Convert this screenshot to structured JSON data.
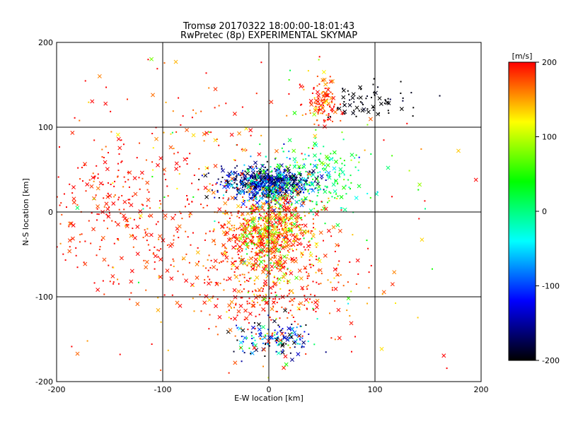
{
  "chart_data": {
    "type": "scatter",
    "title": "Tromsø 20170322 18:00:00-18:01:43",
    "subtitle": "RwPretec (8p) EXPERIMENTAL SKYMAP",
    "xlabel": "E-W location [km]",
    "ylabel": "N-S location [km]",
    "xlim": [
      -200,
      200
    ],
    "ylim": [
      -200,
      200
    ],
    "xticks": [
      "-200",
      "-100",
      "0",
      "100",
      "200"
    ],
    "yticks": [
      "-200",
      "-100",
      "0",
      "100",
      "200"
    ],
    "grid": true,
    "colorbar": {
      "label": "[m/s]",
      "min": -200,
      "max": 200,
      "ticks": [
        "200",
        "100",
        "0",
        "-100",
        "-200"
      ],
      "colormap": [
        "#000000",
        "#0000ff",
        "#00ffff",
        "#00ff00",
        "#ffff00",
        "#ff0000"
      ]
    },
    "markers": {
      "small": "dot",
      "large": "x"
    },
    "clusters": [
      {
        "x": 0,
        "y": 30,
        "sx": 20,
        "sy": 10,
        "n": 500,
        "vel": -120,
        "vsd": 60
      },
      {
        "x": 0,
        "y": 40,
        "sx": 25,
        "sy": 8,
        "n": 200,
        "vel": -170,
        "vsd": 30
      },
      {
        "x": 0,
        "y": -20,
        "sx": 22,
        "sy": 20,
        "n": 450,
        "vel": 180,
        "vsd": 30
      },
      {
        "x": 0,
        "y": -30,
        "sx": 15,
        "sy": 25,
        "n": 250,
        "vel": 100,
        "vsd": 60
      },
      {
        "x": 10,
        "y": -150,
        "sx": 20,
        "sy": 10,
        "n": 150,
        "vel": -110,
        "vsd": 70
      },
      {
        "x": 50,
        "y": 130,
        "sx": 8,
        "sy": 15,
        "n": 120,
        "vel": 180,
        "vsd": 30
      },
      {
        "x": 90,
        "y": 130,
        "sx": 20,
        "sy": 10,
        "n": 70,
        "vel": -200,
        "vsd": 10
      },
      {
        "x": 40,
        "y": 40,
        "sx": 30,
        "sy": 20,
        "n": 250,
        "vel": 20,
        "vsd": 50
      },
      {
        "x": 0,
        "y": -80,
        "sx": 40,
        "sy": 40,
        "n": 400,
        "vel": 190,
        "vsd": 30
      },
      {
        "x": -150,
        "y": 10,
        "sx": 30,
        "sy": 40,
        "n": 150,
        "vel": 195,
        "vsd": 15
      },
      {
        "x": -80,
        "y": 0,
        "sx": 60,
        "sy": 80,
        "n": 300,
        "vel": 190,
        "vsd": 30
      },
      {
        "x": 0,
        "y": 0,
        "sx": 120,
        "sy": 110,
        "n": 150,
        "vel": 150,
        "vsd": 80
      }
    ]
  }
}
